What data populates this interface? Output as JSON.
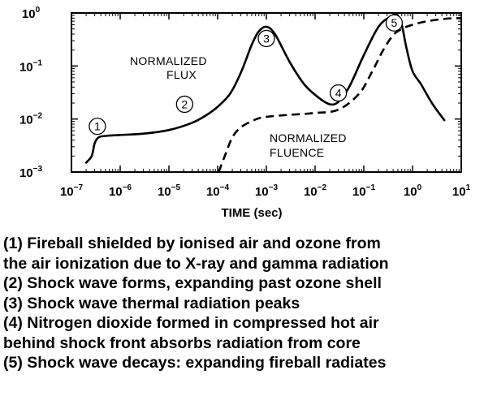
{
  "chart_data": {
    "type": "line",
    "title": "",
    "xlabel": "TIME (sec)",
    "ylabel": "",
    "x_scale": "log",
    "y_scale": "log",
    "xlim": [
      1e-07,
      10
    ],
    "ylim": [
      0.001,
      1
    ],
    "grid": false,
    "legend": "none",
    "x_ticks": [
      {
        "value": 1e-07,
        "base": "10",
        "exp": "−7"
      },
      {
        "value": 1e-06,
        "base": "10",
        "exp": "−6"
      },
      {
        "value": 1e-05,
        "base": "10",
        "exp": "−5"
      },
      {
        "value": 0.0001,
        "base": "10",
        "exp": "−4"
      },
      {
        "value": 0.001,
        "base": "10",
        "exp": "−3"
      },
      {
        "value": 0.01,
        "base": "10",
        "exp": "−2"
      },
      {
        "value": 0.1,
        "base": "10",
        "exp": "−1"
      },
      {
        "value": 1,
        "base": "10",
        "exp": "0"
      },
      {
        "value": 10,
        "base": "10",
        "exp": "1"
      }
    ],
    "y_ticks": [
      {
        "value": 0.001,
        "base": "10",
        "exp": "−3"
      },
      {
        "value": 0.01,
        "base": "10",
        "exp": "−2"
      },
      {
        "value": 0.1,
        "base": "10",
        "exp": "−1"
      },
      {
        "value": 1,
        "base": "10",
        "exp": "0"
      }
    ],
    "series": [
      {
        "label_lines": [
          "NORMALIZED",
          "FLUX"
        ],
        "style": "solid",
        "points": [
          [
            2e-07,
            0.0015
          ],
          [
            2.6e-07,
            0.002
          ],
          [
            3e-07,
            0.0035
          ],
          [
            3.6e-07,
            0.0045
          ],
          [
            5e-07,
            0.0048
          ],
          [
            1e-06,
            0.005
          ],
          [
            3e-06,
            0.0053
          ],
          [
            1e-05,
            0.0062
          ],
          [
            3e-05,
            0.0085
          ],
          [
            6e-05,
            0.012
          ],
          [
            0.0001,
            0.017
          ],
          [
            0.00018,
            0.03
          ],
          [
            0.0003,
            0.075
          ],
          [
            0.0005,
            0.25
          ],
          [
            0.0007,
            0.45
          ],
          [
            0.001,
            0.55
          ],
          [
            0.0015,
            0.4
          ],
          [
            0.003,
            0.12
          ],
          [
            0.006,
            0.045
          ],
          [
            0.012,
            0.025
          ],
          [
            0.02,
            0.019
          ],
          [
            0.03,
            0.021
          ],
          [
            0.05,
            0.04
          ],
          [
            0.1,
            0.16
          ],
          [
            0.2,
            0.55
          ],
          [
            0.35,
            0.85
          ],
          [
            0.48,
            0.92
          ],
          [
            0.6,
            0.6
          ],
          [
            0.75,
            0.22
          ],
          [
            1.0,
            0.08
          ],
          [
            1.5,
            0.045
          ],
          [
            2.5,
            0.02
          ],
          [
            4.5,
            0.0095
          ]
        ]
      },
      {
        "label_lines": [
          "NORMALIZED",
          "FLUENCE"
        ],
        "style": "dashed",
        "points": [
          [
            0.000105,
            0.001
          ],
          [
            0.00014,
            0.002
          ],
          [
            0.0002,
            0.0045
          ],
          [
            0.0003,
            0.007
          ],
          [
            0.0006,
            0.0098
          ],
          [
            0.001,
            0.011
          ],
          [
            0.003,
            0.012
          ],
          [
            0.01,
            0.013
          ],
          [
            0.03,
            0.015
          ],
          [
            0.08,
            0.03
          ],
          [
            0.15,
            0.08
          ],
          [
            0.25,
            0.2
          ],
          [
            0.4,
            0.38
          ],
          [
            0.6,
            0.5
          ],
          [
            1.0,
            0.6
          ],
          [
            2.0,
            0.7
          ],
          [
            5.0,
            0.78
          ],
          [
            10,
            0.8
          ]
        ]
      }
    ],
    "markers": [
      {
        "label": "1",
        "x": 3.4e-07,
        "y": 0.0073
      },
      {
        "label": "2",
        "x": 2.1e-05,
        "y": 0.019
      },
      {
        "label": "3",
        "x": 0.001,
        "y": 0.33
      },
      {
        "label": "4",
        "x": 0.03,
        "y": 0.031
      },
      {
        "label": "5",
        "x": 0.42,
        "y": 0.65
      }
    ],
    "captions": [
      "(1) Fireball shielded by ionised air and ozone from",
      "the air ionization due to X-ray and gamma radiation",
      "(2) Shock wave forms, expanding past ozone shell",
      "(3) Shock wave thermal radiation peaks",
      "(4) Nitrogen dioxide formed in compressed hot air",
      "behind shock front absorbs radiation from core",
      "(5) Shock wave decays: expanding fireball radiates"
    ]
  }
}
